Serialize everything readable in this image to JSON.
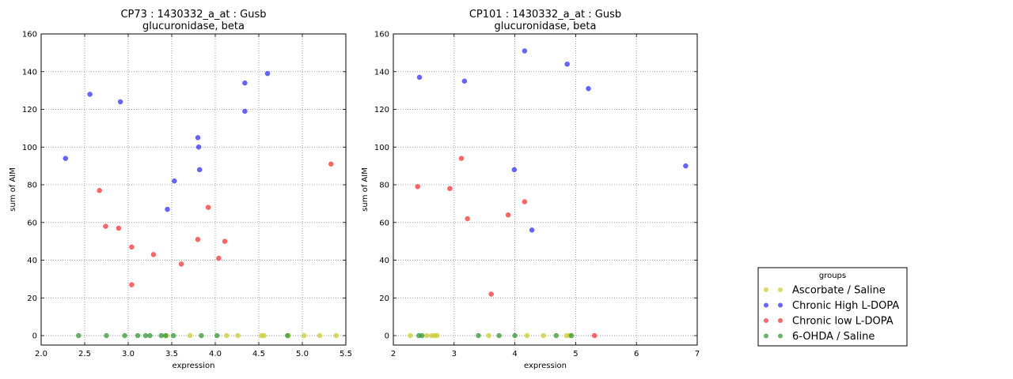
{
  "legend": {
    "title": "groups",
    "placement": "lower-right",
    "entries": [
      {
        "label": "Ascorbate / Saline",
        "color": "#cccc33"
      },
      {
        "label": "Chronic High L-DOPA",
        "color": "#3333ff"
      },
      {
        "label": "Chronic low L-DOPA",
        "color": "#ff3333"
      },
      {
        "label": "6-OHDA / Saline",
        "color": "#339933"
      }
    ]
  },
  "chart_data": [
    {
      "type": "scatter",
      "title_line1": "CP73 : 1430332_a_at : Gusb",
      "title_line2": "glucuronidase, beta",
      "xlabel": "expression",
      "ylabel": "sum of AIM",
      "xlim": [
        2.0,
        5.5
      ],
      "ylim": [
        -5,
        160
      ],
      "xticks": [
        "2.0",
        "2.5",
        "3.0",
        "3.5",
        "4.0",
        "4.5",
        "5.0",
        "5.5"
      ],
      "yticks": [
        "0",
        "20",
        "40",
        "60",
        "80",
        "100",
        "120",
        "140",
        "160"
      ],
      "grid": true,
      "series": [
        {
          "name": "Ascorbate / Saline",
          "x": [
            3.44,
            3.71,
            4.13,
            4.26,
            4.53,
            4.56,
            4.84,
            5.02,
            5.2,
            5.39
          ],
          "y": [
            0,
            0,
            0,
            0,
            0,
            0,
            0,
            0,
            0,
            0
          ]
        },
        {
          "name": "Chronic High L-DOPA",
          "x": [
            2.28,
            2.56,
            2.91,
            3.45,
            3.53,
            3.8,
            3.81,
            3.82,
            4.34,
            4.34,
            4.6
          ],
          "y": [
            94,
            128,
            124,
            67,
            82,
            105,
            100,
            88,
            134,
            119,
            139
          ]
        },
        {
          "name": "Chronic low L-DOPA",
          "x": [
            2.67,
            2.74,
            2.89,
            3.04,
            3.04,
            3.29,
            3.61,
            3.8,
            3.92,
            4.04,
            4.11,
            5.33
          ],
          "y": [
            77,
            58,
            57,
            47,
            27,
            43,
            38,
            51,
            68,
            41,
            50,
            91
          ]
        },
        {
          "name": "6-OHDA / Saline",
          "x": [
            2.43,
            2.75,
            2.96,
            3.11,
            3.2,
            3.25,
            3.38,
            3.43,
            3.52,
            3.84,
            4.02,
            4.83
          ],
          "y": [
            0,
            0,
            0,
            0,
            0,
            0,
            0,
            0,
            0,
            0,
            0,
            0
          ]
        }
      ]
    },
    {
      "type": "scatter",
      "title_line1": "CP101 : 1430332_a_at : Gusb",
      "title_line2": "glucuronidase, beta",
      "xlabel": "expression",
      "ylabel": "sum of AIM",
      "xlim": [
        2,
        7
      ],
      "ylim": [
        -5,
        160
      ],
      "xticks": [
        "2",
        "3",
        "4",
        "5",
        "6",
        "7"
      ],
      "yticks": [
        "0",
        "20",
        "40",
        "60",
        "80",
        "100",
        "120",
        "140",
        "160"
      ],
      "grid": true,
      "series": [
        {
          "name": "Ascorbate / Saline",
          "x": [
            2.28,
            2.55,
            2.63,
            2.68,
            2.72,
            3.57,
            4.2,
            4.47,
            4.85,
            4.9
          ],
          "y": [
            0,
            0,
            0,
            0,
            0,
            0,
            0,
            0,
            0,
            0
          ]
        },
        {
          "name": "Chronic High L-DOPA",
          "x": [
            2.43,
            3.17,
            3.99,
            4.16,
            4.28,
            4.86,
            5.21,
            6.81
          ],
          "y": [
            137,
            135,
            88,
            151,
            56,
            144,
            131,
            90
          ]
        },
        {
          "name": "Chronic low L-DOPA",
          "x": [
            2.4,
            2.93,
            3.12,
            3.22,
            3.61,
            3.89,
            4.16,
            5.31
          ],
          "y": [
            79,
            78,
            94,
            62,
            22,
            64,
            71,
            0
          ]
        },
        {
          "name": "6-OHDA / Saline",
          "x": [
            2.42,
            2.47,
            3.4,
            3.74,
            4.0,
            4.68,
            4.93
          ],
          "y": [
            0,
            0,
            0,
            0,
            0,
            0,
            0
          ]
        }
      ]
    }
  ]
}
